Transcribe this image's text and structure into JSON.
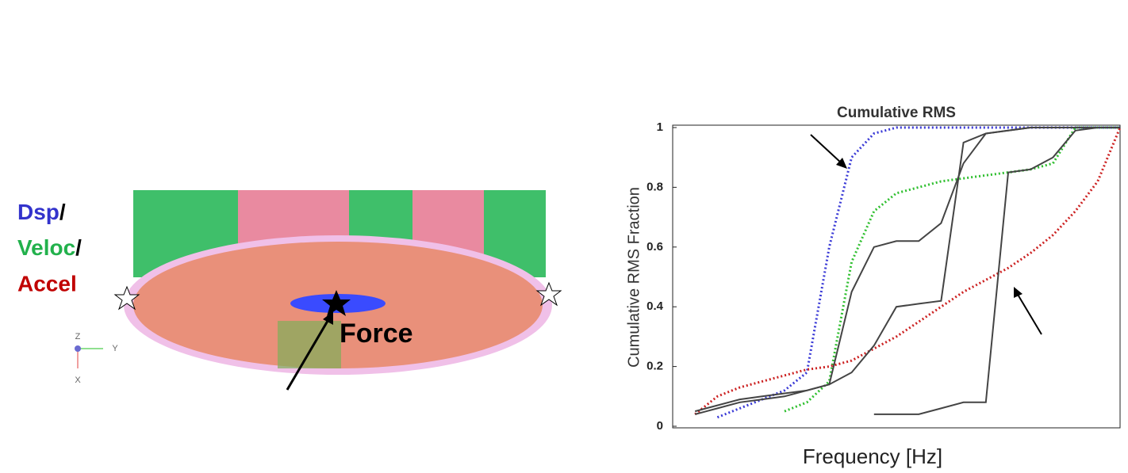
{
  "figure": {
    "labels": [
      "Dsp",
      "/",
      "Veloc",
      "/",
      "Accel"
    ],
    "force_label": "Force",
    "triad": [
      "Z",
      "Y",
      "X"
    ]
  },
  "chart_data": {
    "type": "line",
    "title": "Cumulative RMS",
    "y_label": "Cumulative RMS Fraction",
    "x_label": "Frequency [Hz]",
    "categories": [
      null,
      null,
      null,
      null,
      null,
      null,
      null,
      null,
      null,
      null,
      null,
      null,
      null,
      null,
      null,
      null,
      null,
      null,
      null,
      null,
      null
    ],
    "ylim": [
      0,
      1
    ],
    "yticks": [
      0,
      0.2,
      0.4,
      0.6,
      0.8,
      1
    ],
    "series": [
      {
        "color": "#3a3ad6",
        "style": "dotted",
        "values": [
          null,
          null,
          0.03,
          0.06,
          0.09,
          0.12,
          0.18,
          0.6,
          0.9,
          0.98,
          1,
          1,
          1,
          1,
          1,
          1,
          1,
          1,
          1,
          1,
          1
        ]
      },
      {
        "color": "#2fbf2f",
        "style": "dotted",
        "values": [
          null,
          null,
          null,
          null,
          null,
          0.05,
          0.08,
          0.15,
          0.55,
          0.72,
          0.78,
          0.8,
          0.82,
          0.83,
          0.84,
          0.85,
          0.86,
          0.88,
          1,
          1,
          1
        ]
      },
      {
        "color": "#cc2222",
        "style": "dotted",
        "values": [
          null,
          0.04,
          0.1,
          0.13,
          0.15,
          0.17,
          0.19,
          0.2,
          0.22,
          0.26,
          0.3,
          0.35,
          0.4,
          0.45,
          0.49,
          0.53,
          0.58,
          0.64,
          0.72,
          0.82,
          1
        ]
      },
      {
        "color": "#444444",
        "style": "solid",
        "values": [
          null,
          0.05,
          0.07,
          0.09,
          0.1,
          0.11,
          0.12,
          0.14,
          0.45,
          0.6,
          0.62,
          0.62,
          0.68,
          0.88,
          0.98,
          0.99,
          1,
          1,
          1,
          1,
          1
        ]
      },
      {
        "color": "#444444",
        "style": "solid",
        "values": [
          null,
          0.04,
          0.06,
          0.08,
          0.09,
          0.1,
          0.12,
          0.14,
          0.18,
          0.27,
          0.4,
          0.41,
          0.42,
          0.95,
          0.98,
          0.99,
          1,
          1,
          1,
          1,
          1
        ]
      },
      {
        "color": "#444444",
        "style": "solid",
        "values": [
          null,
          null,
          null,
          null,
          null,
          null,
          null,
          null,
          null,
          0.04,
          0.04,
          0.04,
          0.06,
          0.08,
          0.08,
          0.85,
          0.86,
          0.9,
          0.99,
          1,
          1
        ]
      }
    ]
  }
}
